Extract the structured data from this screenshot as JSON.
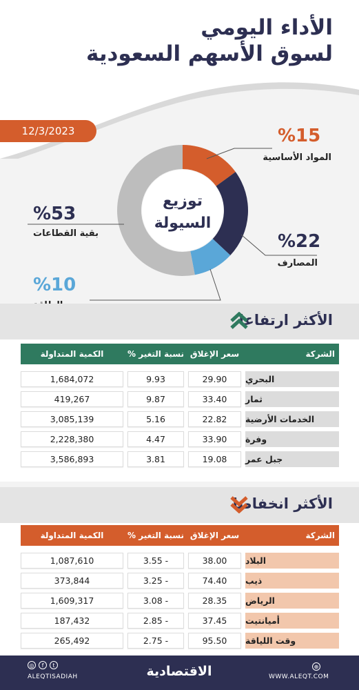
{
  "header": {
    "title_line1": "الأداء اليومي",
    "title_line2": "لسوق الأسهم السعودية",
    "date": "12/3/2023"
  },
  "donut": {
    "center_line1": "توزيع",
    "center_line2": "السيولة",
    "segments": [
      {
        "pct": "%15",
        "label": "المواد الأساسية",
        "value": 15,
        "color": "#d45d2c"
      },
      {
        "pct": "%22",
        "label": "المصارف",
        "value": 22,
        "color": "#2d2f52"
      },
      {
        "pct": "%10",
        "label": "الطاقة",
        "value": 10,
        "color": "#5aa7d8"
      },
      {
        "pct": "%53",
        "label": "بقية القطاعات",
        "value": 53,
        "color": "#bdbdbd"
      }
    ]
  },
  "gainers": {
    "title": "الأكثر ارتفاعا",
    "header_color": "#2f7a5f",
    "name_bg": "#dcdcdc",
    "columns": [
      "الشركة",
      "سعر الإغلاق",
      "نسبة التغير %",
      "الكمية المتداولة"
    ],
    "rows": [
      {
        "name": "البحري",
        "close": "29.90",
        "change": "9.93",
        "volume": "1,684,072"
      },
      {
        "name": "ثمار",
        "close": "33.40",
        "change": "9.87",
        "volume": "419,267"
      },
      {
        "name": "الخدمات الأرضية",
        "close": "22.82",
        "change": "5.16",
        "volume": "3,085,139"
      },
      {
        "name": "وفرة",
        "close": "33.90",
        "change": "4.47",
        "volume": "2,228,380"
      },
      {
        "name": "جبل عمر",
        "close": "19.08",
        "change": "3.81",
        "volume": "3,586,893"
      }
    ]
  },
  "losers": {
    "title": "الأكثر انخفاضا",
    "header_color": "#d45d2c",
    "name_bg": "#f2c7ac",
    "columns": [
      "الشركة",
      "سعر الإغلاق",
      "نسبة التغير %",
      "الكمية المتداولة"
    ],
    "rows": [
      {
        "name": "البلاد",
        "close": "38.00",
        "change": "3.55 -",
        "volume": "1,087,610"
      },
      {
        "name": "ذيب",
        "close": "74.40",
        "change": "3.25 -",
        "volume": "373,844"
      },
      {
        "name": "الرياض",
        "close": "28.35",
        "change": "3.08 -",
        "volume": "1,609,317"
      },
      {
        "name": "أميانتيت",
        "close": "37.45",
        "change": "2.85 -",
        "volume": "187,432"
      },
      {
        "name": "وقت اللياقة",
        "close": "95.50",
        "change": "2.75 -",
        "volume": "265,492"
      }
    ]
  },
  "footer": {
    "handle": "ALEQTISADIAH",
    "brand": "الاقتصادية",
    "website": "WWW.ALEQT.COM",
    "icons": [
      "instagram-icon",
      "facebook-icon",
      "twitter-icon",
      "globe-icon"
    ]
  }
}
